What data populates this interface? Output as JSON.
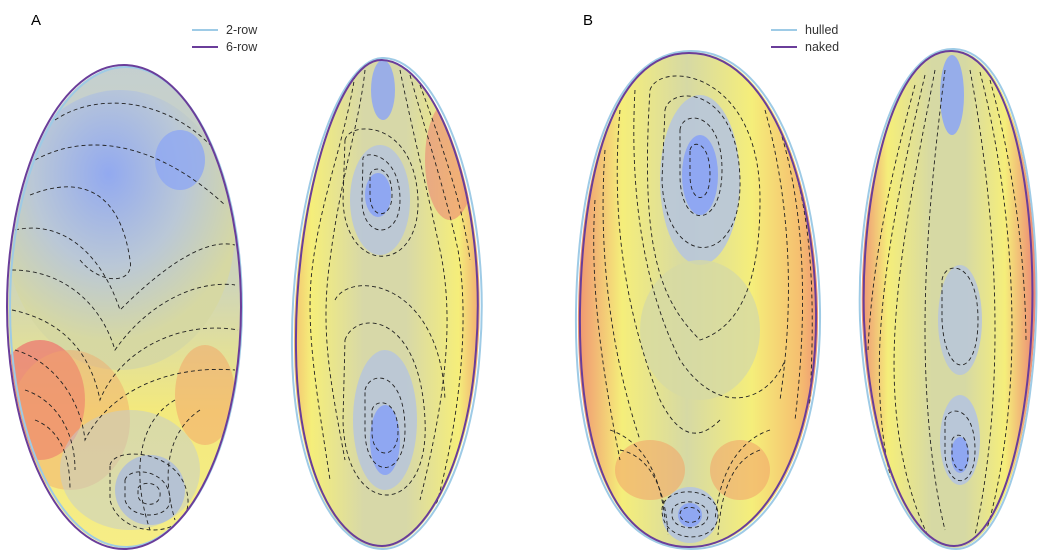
{
  "panels": [
    {
      "letter": "A",
      "legend": [
        {
          "label": "2-row",
          "color": "#9ecbe6"
        },
        {
          "label": "6-row",
          "color": "#6a3d9a"
        }
      ]
    },
    {
      "letter": "B",
      "legend": [
        {
          "label": "hulled",
          "color": "#9ecbe6"
        },
        {
          "label": "naked",
          "color": "#6a3d9a"
        }
      ]
    }
  ],
  "colors": {
    "low": "#8fa7f2",
    "mid_low": "#b9c7d8",
    "mid": "#d6d8a2",
    "high": "#f5ee7a",
    "very_high": "#f2a66a",
    "extreme": "#ec7d73",
    "outline_inner": "#9ecbe6",
    "outline_outer": "#6a3d9a"
  }
}
